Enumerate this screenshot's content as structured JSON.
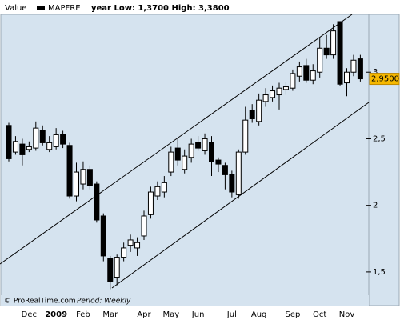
{
  "chart_data": {
    "type": "candlestick",
    "header": {
      "label": "Value",
      "name": "MAPFRE",
      "range_text": "year Low: 1,3700 High: 3,3800"
    },
    "footer": {
      "source": "© ProRealTime.com",
      "period": "Period: Weekly"
    },
    "last_price_label": "2,9500",
    "up_color": "#ffffff",
    "down_color": "#000000",
    "last_price_color": "#f5b800",
    "categories": [
      null,
      null,
      null,
      "Dec",
      null,
      null,
      null,
      "2009",
      null,
      null,
      null,
      "Feb",
      null,
      null,
      null,
      "Mar",
      null,
      null,
      null,
      null,
      "Apr",
      null,
      null,
      null,
      "May",
      null,
      null,
      null,
      "Jun",
      null,
      null,
      null,
      null,
      "Jul",
      null,
      null,
      null,
      "Aug",
      null,
      null,
      null,
      null,
      "Sep",
      null,
      null,
      null,
      "Oct",
      null,
      null,
      null,
      "Nov",
      null,
      null
    ],
    "open": [
      2.6,
      2.4,
      2.46,
      2.42,
      2.43,
      2.56,
      2.42,
      2.44,
      2.53,
      2.45,
      2.07,
      2.16,
      2.27,
      2.16,
      1.92,
      1.6,
      1.46,
      1.61,
      1.7,
      1.68,
      1.77,
      1.93,
      2.07,
      2.1,
      2.25,
      2.43,
      2.27,
      2.36,
      2.47,
      2.41,
      2.47,
      2.34,
      2.3,
      2.23,
      2.08,
      2.4,
      2.71,
      2.63,
      2.78,
      2.81,
      2.83,
      2.87,
      2.88,
      2.97,
      3.05,
      2.94,
      3.0,
      3.18,
      3.13,
      3.38,
      2.92,
      3.0,
      3.1
    ],
    "high": [
      2.62,
      2.52,
      2.5,
      2.48,
      2.63,
      2.6,
      2.52,
      2.58,
      2.56,
      2.47,
      2.32,
      2.33,
      2.3,
      2.18,
      1.94,
      1.62,
      1.63,
      1.72,
      1.78,
      1.76,
      1.96,
      2.14,
      2.18,
      2.22,
      2.44,
      2.5,
      2.42,
      2.5,
      2.52,
      2.54,
      2.52,
      2.36,
      2.32,
      2.26,
      2.42,
      2.74,
      2.76,
      2.84,
      2.88,
      2.9,
      2.92,
      2.93,
      3.02,
      3.08,
      3.1,
      3.06,
      3.26,
      3.28,
      3.36,
      3.38,
      3.03,
      3.13,
      3.13
    ],
    "low": [
      2.33,
      2.38,
      2.3,
      2.4,
      2.41,
      2.45,
      2.4,
      2.42,
      2.43,
      2.05,
      2.03,
      2.12,
      2.12,
      1.87,
      1.58,
      1.37,
      1.4,
      1.58,
      1.65,
      1.62,
      1.74,
      1.9,
      2.04,
      2.06,
      2.22,
      2.3,
      2.24,
      2.32,
      2.41,
      2.38,
      2.22,
      2.25,
      2.12,
      2.06,
      2.05,
      2.38,
      2.62,
      2.6,
      2.74,
      2.78,
      2.72,
      2.83,
      2.86,
      2.93,
      2.92,
      2.91,
      2.96,
      3.1,
      3.1,
      2.9,
      2.82,
      2.97,
      2.93
    ],
    "close": [
      2.35,
      2.48,
      2.38,
      2.44,
      2.58,
      2.47,
      2.47,
      2.53,
      2.46,
      2.07,
      2.25,
      2.27,
      2.15,
      1.89,
      1.62,
      1.43,
      1.61,
      1.68,
      1.74,
      1.72,
      1.92,
      2.1,
      2.14,
      2.17,
      2.4,
      2.34,
      2.37,
      2.46,
      2.43,
      2.5,
      2.33,
      2.31,
      2.23,
      2.1,
      2.4,
      2.64,
      2.65,
      2.79,
      2.83,
      2.86,
      2.88,
      2.89,
      2.99,
      3.04,
      2.94,
      3.01,
      3.18,
      3.13,
      3.31,
      2.91,
      3.0,
      3.09,
      2.95
    ],
    "ylim": [
      1.247,
      3.434
    ],
    "yticks": [
      {
        "value": 1.5,
        "label": "1,5"
      },
      2,
      {
        "value": 2.5,
        "label": "2,5"
      },
      3
    ]
  }
}
